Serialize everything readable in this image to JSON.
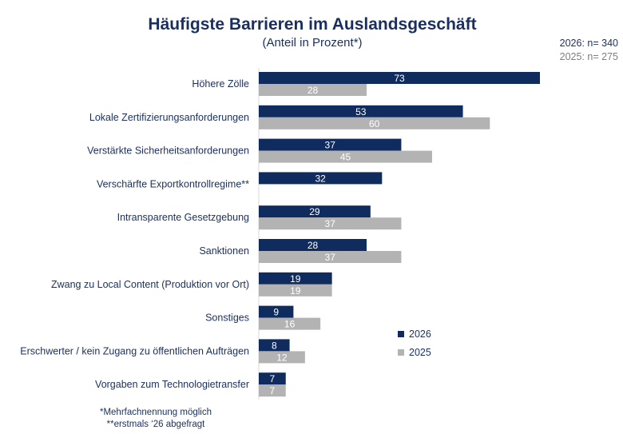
{
  "chart_data": {
    "type": "bar",
    "orientation": "horizontal",
    "title": "Häufigste Barrieren im Auslandsgeschäft",
    "subtitle": "(Anteil in Prozent*)",
    "categories": [
      "Höhere Zölle",
      "Lokale Zertifizierungsanforderungen",
      "Verstärkte Sicherheitsanforderungen",
      "Verschärfte Exportkontrollregime**",
      "Intransparente Gesetzgebung",
      "Sanktionen",
      "Zwang zu Local Content (Produktion vor Ort)",
      "Sonstiges",
      "Erschwerter / kein Zugang zu öffentlichen Aufträgen",
      "Vorgaben zum Technologietransfer"
    ],
    "series": [
      {
        "name": "2026",
        "color": "#102c5e",
        "label_color": "#ffffff",
        "values": [
          73,
          53,
          37,
          32,
          29,
          28,
          19,
          9,
          8,
          7
        ]
      },
      {
        "name": "2025",
        "color": "#b3b3b3",
        "label_color": "#ffffff",
        "values": [
          28,
          60,
          45,
          null,
          37,
          37,
          19,
          16,
          12,
          7
        ]
      }
    ],
    "xlim": [
      0,
      100
    ],
    "grid": false,
    "legend": "right"
  },
  "sample_sizes": {
    "n_2026": "2026: n= 340",
    "n_2025": "2025: n= 275"
  },
  "footnotes": {
    "line1": "*Mehrfachnennung möglich",
    "line2": "**erstmals ‘26 abgefragt"
  }
}
